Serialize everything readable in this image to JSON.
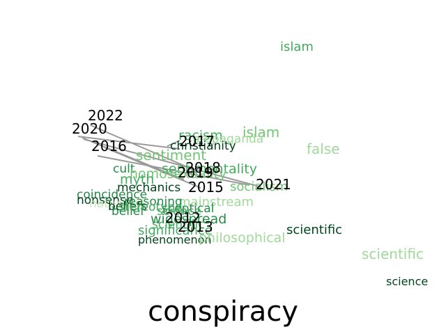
{
  "title": "conspiracy",
  "years": [
    "2022",
    "2020",
    "2016",
    "2017",
    "2018",
    "2019",
    "2015",
    "2021",
    "2012",
    "2013"
  ],
  "words": [
    "islam",
    "islam",
    "false",
    "racism",
    "propaganda",
    "christianity",
    "sentiment",
    "cult",
    "sentimentality",
    "homosexuality",
    "socialism",
    "myth",
    "mechanics",
    "coincidence",
    "nonsense",
    "mainstream",
    "naturalist",
    "reasoning",
    "beliefs",
    "belief",
    "stereotype",
    "sceptical",
    "science",
    "widespread",
    "scientific",
    "significance",
    "phenomenon",
    "philosophical",
    "scientific",
    "science"
  ],
  "palette": {
    "light": "#a1d99b",
    "mid": "#41ab5d",
    "dark": "#238b45",
    "darkest": "#00441b",
    "arrow": "#999999",
    "year": "#000000"
  }
}
